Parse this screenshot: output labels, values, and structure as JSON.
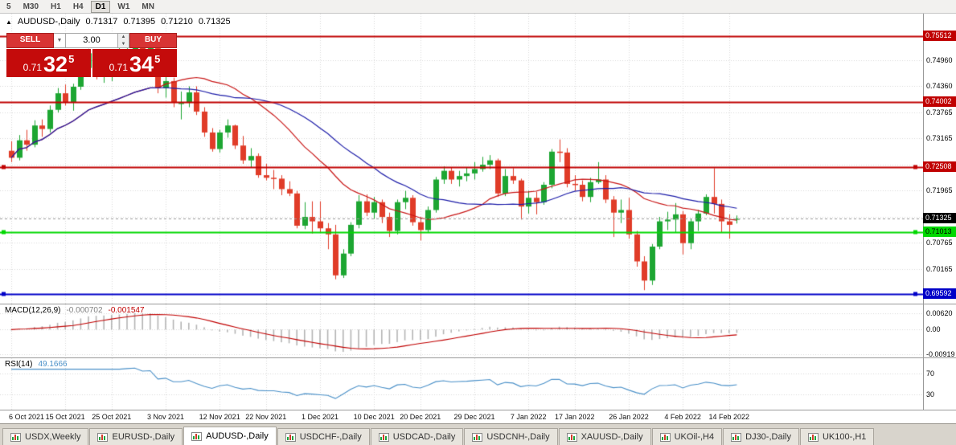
{
  "toolbar": {
    "timeframes": [
      {
        "label": "5",
        "active": false
      },
      {
        "label": "M30",
        "active": false
      },
      {
        "label": "H1",
        "active": false
      },
      {
        "label": "H4",
        "active": false
      },
      {
        "label": "D1",
        "active": true
      },
      {
        "label": "W1",
        "active": false
      },
      {
        "label": "MN",
        "active": false
      }
    ]
  },
  "chart": {
    "collapse_icon": "▲",
    "title": "AUDUSD-,Daily",
    "open": "0.71317",
    "high": "0.71395",
    "low": "0.71210",
    "close": "0.71325"
  },
  "trade_panel": {
    "sell_label": "SELL",
    "buy_label": "BUY",
    "volume": "3.00",
    "dropdown_icon": "▼",
    "spin_up_icon": "▲",
    "spin_down_icon": "▼",
    "sell": {
      "base": "0.71",
      "big": "32",
      "sup": "5"
    },
    "buy": {
      "base": "0.71",
      "big": "34",
      "sup": "5"
    }
  },
  "price_axis": {
    "ticks": [
      "0.74960",
      "0.74360",
      "0.73765",
      "0.73165",
      "0.72565",
      "0.71965",
      "0.71365",
      "0.70765",
      "0.70165"
    ]
  },
  "macd_label": {
    "name": "MACD(12,26,9)",
    "value1": "-0.000702",
    "value2": "-0.001547"
  },
  "rsi_label": {
    "name": "RSI(14)",
    "value": "49.1666"
  },
  "chart_data": {
    "type": "candlestick",
    "symbol": "AUDUSD-",
    "timeframe": "Daily",
    "ohlc_current": {
      "open": 0.71317,
      "high": 0.71395,
      "low": 0.7121,
      "close": 0.71325
    },
    "ylim": [
      0.69371,
      0.76028
    ],
    "layout": {
      "x0": 14,
      "dx": 9.6,
      "body_w": 7,
      "grid": "dotted",
      "legend": "none"
    },
    "colors": {
      "up": "#1da632",
      "down": "#e03c28",
      "grid": "#d8d8d8",
      "bid_line": "#999999"
    },
    "candles": [
      [
        0.7288,
        0.731,
        0.7262,
        0.7272
      ],
      [
        0.7272,
        0.7324,
        0.7266,
        0.7312
      ],
      [
        0.7312,
        0.7336,
        0.7288,
        0.7302
      ],
      [
        0.7302,
        0.7358,
        0.7296,
        0.7346
      ],
      [
        0.7346,
        0.736,
        0.732,
        0.7338
      ],
      [
        0.7338,
        0.7392,
        0.733,
        0.7382
      ],
      [
        0.7382,
        0.7432,
        0.7376,
        0.742
      ],
      [
        0.742,
        0.744,
        0.7392,
        0.74
      ],
      [
        0.74,
        0.7442,
        0.738,
        0.7435
      ],
      [
        0.7435,
        0.749,
        0.7428,
        0.7478
      ],
      [
        0.7478,
        0.7522,
        0.746,
        0.7512
      ],
      [
        0.7512,
        0.752,
        0.7452,
        0.7466
      ],
      [
        0.7466,
        0.7502,
        0.7444,
        0.7468
      ],
      [
        0.7468,
        0.7506,
        0.7448,
        0.749
      ],
      [
        0.749,
        0.7534,
        0.747,
        0.75
      ],
      [
        0.75,
        0.7536,
        0.7464,
        0.752
      ],
      [
        0.752,
        0.7551,
        0.75,
        0.754
      ],
      [
        0.754,
        0.7546,
        0.749,
        0.7512
      ],
      [
        0.7512,
        0.7536,
        0.7482,
        0.7524
      ],
      [
        0.7524,
        0.7528,
        0.742,
        0.7432
      ],
      [
        0.7432,
        0.747,
        0.741,
        0.7448
      ],
      [
        0.7448,
        0.7456,
        0.7388,
        0.7398
      ],
      [
        0.7398,
        0.7424,
        0.736,
        0.7398
      ],
      [
        0.7398,
        0.7436,
        0.7388,
        0.7422
      ],
      [
        0.7422,
        0.7436,
        0.737,
        0.7378
      ],
      [
        0.7378,
        0.7388,
        0.732,
        0.733
      ],
      [
        0.733,
        0.734,
        0.7286,
        0.7292
      ],
      [
        0.7292,
        0.7336,
        0.7284,
        0.733
      ],
      [
        0.733,
        0.736,
        0.7318,
        0.7346
      ],
      [
        0.7346,
        0.7348,
        0.7292,
        0.73
      ],
      [
        0.73,
        0.7322,
        0.7258,
        0.7266
      ],
      [
        0.7266,
        0.7294,
        0.725,
        0.7276
      ],
      [
        0.7276,
        0.7282,
        0.7226,
        0.7232
      ],
      [
        0.7232,
        0.7258,
        0.722,
        0.7226
      ],
      [
        0.7226,
        0.7244,
        0.72,
        0.7224
      ],
      [
        0.7224,
        0.7232,
        0.7186,
        0.72
      ],
      [
        0.72,
        0.7218,
        0.7184,
        0.719
      ],
      [
        0.719,
        0.7196,
        0.711,
        0.7116
      ],
      [
        0.7116,
        0.717,
        0.7108,
        0.7136
      ],
      [
        0.7136,
        0.7172,
        0.7098,
        0.7126
      ],
      [
        0.7126,
        0.7172,
        0.71,
        0.711
      ],
      [
        0.711,
        0.7122,
        0.7062,
        0.7096
      ],
      [
        0.7096,
        0.7118,
        0.6993,
        0.7002
      ],
      [
        0.7002,
        0.7062,
        0.6996,
        0.7052
      ],
      [
        0.7052,
        0.7124,
        0.7046,
        0.7118
      ],
      [
        0.7118,
        0.7186,
        0.711,
        0.7172
      ],
      [
        0.7172,
        0.7188,
        0.7138,
        0.7146
      ],
      [
        0.7146,
        0.7182,
        0.7132,
        0.717
      ],
      [
        0.717,
        0.7176,
        0.7122,
        0.7136
      ],
      [
        0.7136,
        0.7146,
        0.709,
        0.7104
      ],
      [
        0.7104,
        0.7176,
        0.7096,
        0.717
      ],
      [
        0.717,
        0.7196,
        0.7154,
        0.718
      ],
      [
        0.718,
        0.7186,
        0.7116,
        0.7124
      ],
      [
        0.7124,
        0.7136,
        0.7082,
        0.7106
      ],
      [
        0.7106,
        0.716,
        0.71,
        0.7152
      ],
      [
        0.7152,
        0.7228,
        0.7146,
        0.7222
      ],
      [
        0.7222,
        0.7252,
        0.7212,
        0.7242
      ],
      [
        0.7242,
        0.725,
        0.7212,
        0.7222
      ],
      [
        0.7222,
        0.7242,
        0.7206,
        0.723
      ],
      [
        0.723,
        0.725,
        0.7218,
        0.7236
      ],
      [
        0.7236,
        0.7262,
        0.7222,
        0.7246
      ],
      [
        0.7246,
        0.7274,
        0.724,
        0.7256
      ],
      [
        0.7256,
        0.7278,
        0.7246,
        0.7266
      ],
      [
        0.7266,
        0.727,
        0.7182,
        0.719
      ],
      [
        0.719,
        0.7246,
        0.7184,
        0.723
      ],
      [
        0.723,
        0.7248,
        0.7212,
        0.722
      ],
      [
        0.722,
        0.7224,
        0.713,
        0.716
      ],
      [
        0.716,
        0.7196,
        0.7144,
        0.718
      ],
      [
        0.718,
        0.7194,
        0.7142,
        0.717
      ],
      [
        0.717,
        0.7216,
        0.7164,
        0.721
      ],
      [
        0.721,
        0.7292,
        0.7202,
        0.7286
      ],
      [
        0.7286,
        0.7314,
        0.7262,
        0.7284
      ],
      [
        0.7284,
        0.7294,
        0.7204,
        0.7212
      ],
      [
        0.7212,
        0.7232,
        0.7196,
        0.721
      ],
      [
        0.721,
        0.722,
        0.7172,
        0.7182
      ],
      [
        0.7182,
        0.7226,
        0.717,
        0.7216
      ],
      [
        0.7216,
        0.7262,
        0.7212,
        0.7222
      ],
      [
        0.7222,
        0.7232,
        0.7168,
        0.7176
      ],
      [
        0.7176,
        0.7184,
        0.709,
        0.7146
      ],
      [
        0.7146,
        0.7176,
        0.7122,
        0.7152
      ],
      [
        0.7152,
        0.718,
        0.7086,
        0.7096
      ],
      [
        0.7096,
        0.7104,
        0.7022,
        0.7034
      ],
      [
        0.7034,
        0.7046,
        0.6968,
        0.699
      ],
      [
        0.699,
        0.7074,
        0.698,
        0.7068
      ],
      [
        0.7068,
        0.7136,
        0.7062,
        0.7126
      ],
      [
        0.7126,
        0.7148,
        0.7106,
        0.713
      ],
      [
        0.713,
        0.7168,
        0.71,
        0.7142
      ],
      [
        0.7142,
        0.715,
        0.705,
        0.7076
      ],
      [
        0.7076,
        0.7132,
        0.7062,
        0.7126
      ],
      [
        0.7126,
        0.7152,
        0.7104,
        0.7144
      ],
      [
        0.7144,
        0.7188,
        0.714,
        0.7182
      ],
      [
        0.7182,
        0.7248,
        0.7144,
        0.7166
      ],
      [
        0.7166,
        0.7176,
        0.71,
        0.7126
      ],
      [
        0.7126,
        0.7142,
        0.7086,
        0.7118
      ],
      [
        0.71317,
        0.71395,
        0.7121,
        0.71325
      ]
    ],
    "date_ticks": [
      {
        "index": 0,
        "label": "6 Oct 2021"
      },
      {
        "index": 7,
        "label": "15 Oct 2021"
      },
      {
        "index": 13,
        "label": "25 Oct 2021"
      },
      {
        "index": 20,
        "label": "3 Nov 2021"
      },
      {
        "index": 27,
        "label": "12 Nov 2021"
      },
      {
        "index": 33,
        "label": "22 Nov 2021"
      },
      {
        "index": 40,
        "label": "1 Dec 2021"
      },
      {
        "index": 47,
        "label": "10 Dec 2021"
      },
      {
        "index": 53,
        "label": "20 Dec 2021"
      },
      {
        "index": 60,
        "label": "29 Dec 2021"
      },
      {
        "index": 67,
        "label": "7 Jan 2022"
      },
      {
        "index": 73,
        "label": "17 Jan 2022"
      },
      {
        "index": 80,
        "label": "26 Jan 2022"
      },
      {
        "index": 87,
        "label": "4 Feb 2022"
      },
      {
        "index": 93,
        "label": "14 Feb 2022"
      }
    ],
    "moving_averages": [
      {
        "period": 20,
        "color": "#c81616"
      },
      {
        "period": 30,
        "color": "#1c1ca8"
      }
    ],
    "levels": [
      {
        "price": 0.75512,
        "color": "#c00000",
        "badge_fg": "#ffffff",
        "width": 2,
        "markers": false
      },
      {
        "price": 0.74002,
        "color": "#c00000",
        "badge_fg": "#ffffff",
        "width": 2,
        "markers": false
      },
      {
        "price": 0.72508,
        "color": "#c00000",
        "badge_fg": "#ffffff",
        "width": 2,
        "markers": true
      },
      {
        "price": 0.71013,
        "color": "#00d800",
        "badge_fg": "#000000",
        "width": 2,
        "markers": true
      },
      {
        "price": 0.69592,
        "color": "#0000c8",
        "badge_fg": "#ffffff",
        "width": 2,
        "markers": true
      }
    ],
    "current_price": {
      "bid": 0.71325,
      "badge_bg": "#000000",
      "badge_fg": "#ffffff"
    },
    "macd": {
      "fast": 12,
      "slow": 26,
      "signal": 9,
      "hist_color": "#b4b4b4",
      "signal_color": "#c00000",
      "scale_max": 0.0095,
      "scale_min": -0.0105,
      "axis_ticks": [
        {
          "value": 0.0062,
          "label": "0.00620"
        },
        {
          "value": 0,
          "label": "0.00"
        },
        {
          "value": -0.00919,
          "label": "-0.00919"
        }
      ]
    },
    "rsi": {
      "period": 14,
      "color": "#4a90c8",
      "levels": [
        70,
        30
      ]
    }
  },
  "tabs": [
    {
      "label": "USDX,Weekly",
      "active": false
    },
    {
      "label": "EURUSD-,Daily",
      "active": false
    },
    {
      "label": "AUDUSD-,Daily",
      "active": true
    },
    {
      "label": "USDCHF-,Daily",
      "active": false
    },
    {
      "label": "USDCAD-,Daily",
      "active": false
    },
    {
      "label": "USDCNH-,Daily",
      "active": false
    },
    {
      "label": "XAUUSD-,Daily",
      "active": false
    },
    {
      "label": "UKOil-,H4",
      "active": false
    },
    {
      "label": "DJ30-,Daily",
      "active": false
    },
    {
      "label": "UK100-,H1",
      "active": false
    }
  ]
}
